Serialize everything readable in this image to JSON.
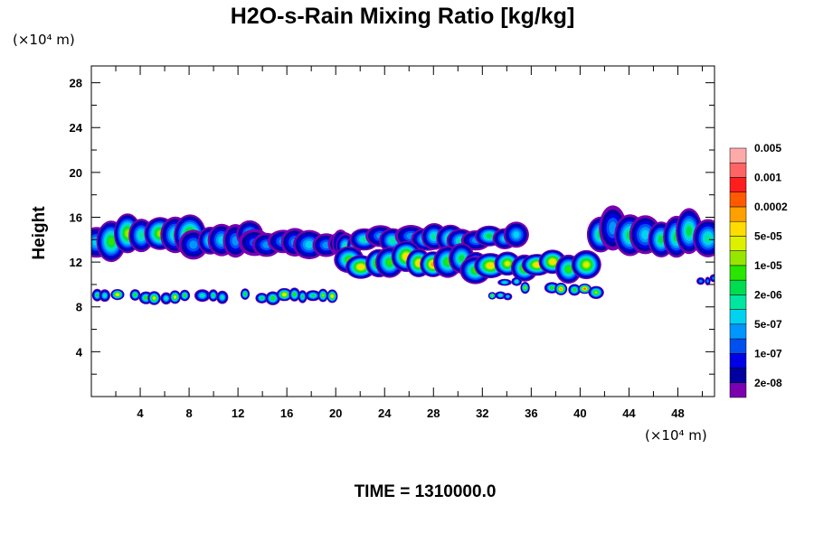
{
  "chart_data": {
    "type": "heatmap",
    "title": "H2O-s-Rain Mixing Ratio [kg/kg]",
    "ylabel": "Height",
    "x_unit": "(×10⁴ m)",
    "y_unit": "(×10⁴ m)",
    "footer": "TIME = 1310000.0",
    "xlim": [
      0,
      51
    ],
    "ylim": [
      0,
      29.5
    ],
    "x_ticks": [
      4,
      8,
      12,
      16,
      20,
      24,
      28,
      32,
      36,
      40,
      44,
      48
    ],
    "y_ticks": [
      4,
      8,
      12,
      16,
      20,
      24,
      28
    ],
    "colorbar": {
      "colors": [
        "#7a00b0",
        "#0000a0",
        "#0000e6",
        "#0050f0",
        "#0096ff",
        "#00d2f0",
        "#00e6a0",
        "#00dc50",
        "#28e600",
        "#96e600",
        "#dcf000",
        "#ffdc00",
        "#ffa000",
        "#ff5a00",
        "#ff1e1e",
        "#ff6464",
        "#ffaaaa"
      ],
      "labels": [
        "2e-08",
        "1e-07",
        "5e-07",
        "2e-06",
        "1e-05",
        "5e-05",
        "0.0002",
        "0.001",
        "0.005"
      ]
    },
    "regions": [
      {
        "x": [
          0,
          8.5
        ],
        "y": [
          12.2,
          15.8
        ],
        "max_level": 9
      },
      {
        "x": [
          8,
          13.5
        ],
        "y": [
          12.3,
          15.4
        ],
        "max_level": 6
      },
      {
        "x": [
          12.5,
          16.5
        ],
        "y": [
          12.1,
          14.8
        ],
        "max_level": 5
      },
      {
        "x": [
          16,
          21
        ],
        "y": [
          12.3,
          14.8
        ],
        "max_level": 6
      },
      {
        "x": [
          20,
          22
        ],
        "y": [
          12.0,
          14.5
        ],
        "max_level": 7
      },
      {
        "x": [
          21.5,
          28
        ],
        "y": [
          12.8,
          15.3
        ],
        "max_level": 7
      },
      {
        "x": [
          27.5,
          35.5
        ],
        "y": [
          12.8,
          15.2
        ],
        "max_level": 7
      },
      {
        "x": [
          20.5,
          32
        ],
        "y": [
          10.5,
          13.3
        ],
        "max_level": 12
      },
      {
        "x": [
          31,
          41
        ],
        "y": [
          10.3,
          12.8
        ],
        "max_level": 12
      },
      {
        "x": [
          41,
          51
        ],
        "y": [
          12.0,
          16.2
        ],
        "max_level": 8
      },
      {
        "x": [
          0.8,
          1.8
        ],
        "y": [
          10.4,
          11.0
        ],
        "max_level": 5
      },
      {
        "x": [
          49.5,
          51
        ],
        "y": [
          10.0,
          10.8
        ],
        "max_level": 5
      },
      {
        "x": [
          33,
          35
        ],
        "y": [
          9.8,
          10.6
        ],
        "max_level": 8
      },
      {
        "x": [
          35,
          38
        ],
        "y": [
          9.2,
          10.4
        ],
        "max_level": 11
      },
      {
        "x": [
          38.2,
          42.5
        ],
        "y": [
          8.8,
          10.0
        ],
        "max_level": 14
      },
      {
        "x": [
          32.5,
          34.5
        ],
        "y": [
          8.5,
          9.3
        ],
        "max_level": 9
      },
      {
        "x": [
          0,
          21
        ],
        "y": [
          8.3,
          9.5
        ],
        "max_level": 11
      }
    ]
  }
}
